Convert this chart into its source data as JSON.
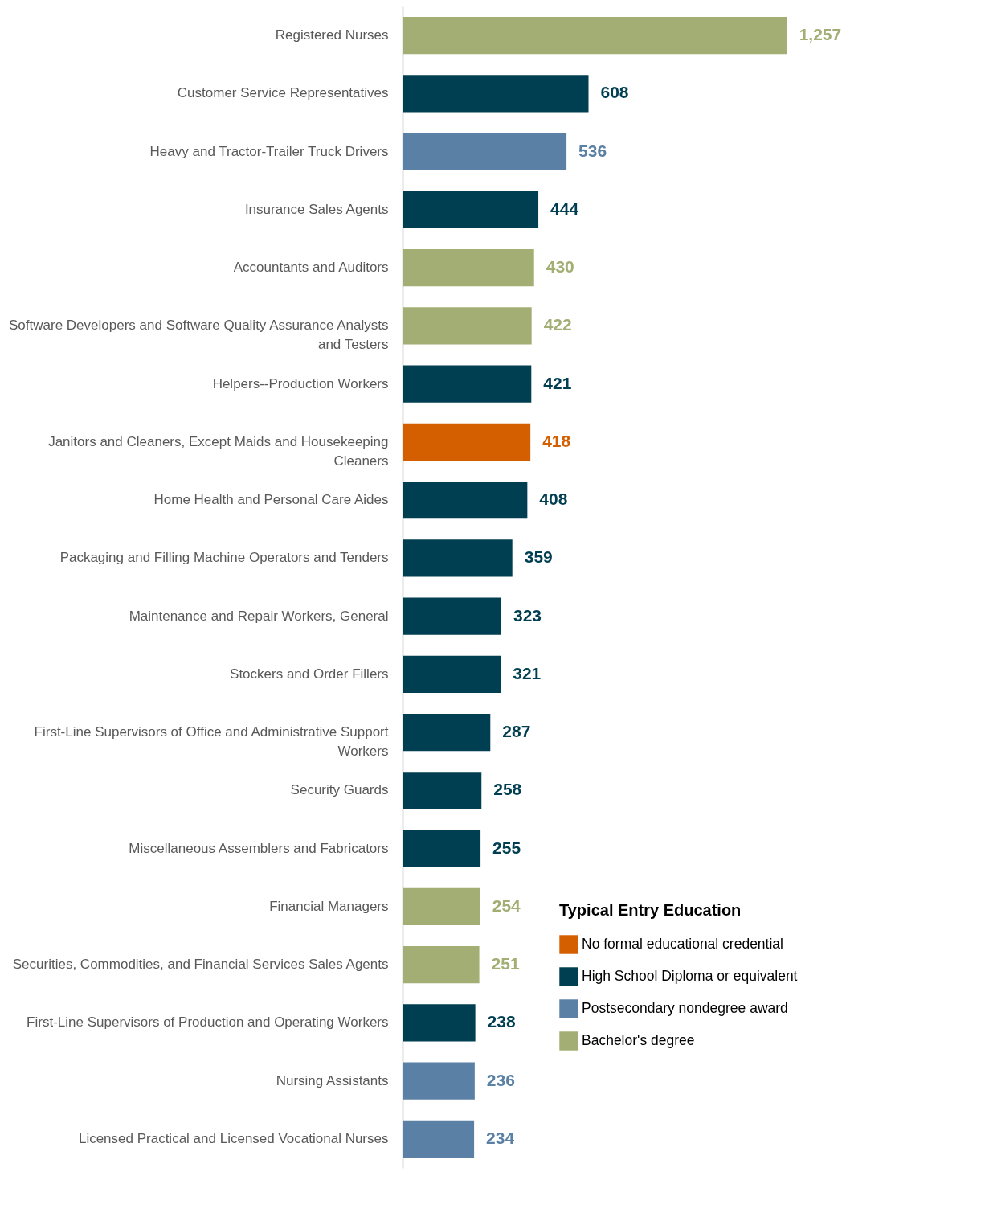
{
  "chart_data": {
    "type": "bar",
    "orientation": "horizontal",
    "legend": "bottom right",
    "legend_title": "Typical Entry Education",
    "categories": [
      "Registered Nurses",
      "Customer Service Representatives",
      "Heavy and Tractor-Trailer Truck Drivers",
      "Insurance Sales Agents",
      "Accountants and Auditors",
      "Software Developers and Software Quality Assurance Analysts and Testers",
      "Helpers--Production Workers",
      "Janitors and Cleaners, Except Maids and Housekeeping Cleaners",
      "Home Health and Personal Care Aides",
      "Packaging and Filling Machine Operators and Tenders",
      "Maintenance and Repair Workers, General",
      "Stockers and Order Fillers",
      "First-Line Supervisors of Office and Administrative Support Workers",
      "Security Guards",
      "Miscellaneous Assemblers and Fabricators",
      "Financial Managers",
      "Securities, Commodities, and Financial Services Sales Agents",
      "First-Line Supervisors of Production and Operating Workers",
      "Nursing Assistants",
      "Licensed Practical and Licensed Vocational Nurses"
    ],
    "series": [
      {
        "name": "No formal educational credential",
        "color": "#d45f00",
        "values": [
          null,
          null,
          null,
          null,
          null,
          null,
          null,
          418,
          null,
          null,
          null,
          null,
          null,
          null,
          null,
          null,
          null,
          null,
          null,
          null
        ],
        "value_labels": [
          null,
          null,
          null,
          null,
          null,
          null,
          null,
          "418",
          null,
          null,
          null,
          null,
          null,
          null,
          null,
          null,
          null,
          null,
          null,
          null
        ]
      },
      {
        "name": "High School Diploma or equivalent",
        "color": "#003e51",
        "values": [
          null,
          608,
          null,
          444,
          null,
          null,
          421,
          null,
          408,
          359,
          323,
          321,
          287,
          258,
          255,
          null,
          null,
          238,
          null,
          null
        ],
        "value_labels": [
          null,
          "608",
          null,
          "444",
          null,
          null,
          "421",
          null,
          "408",
          "359",
          "323",
          "321",
          "287",
          "258",
          "255",
          null,
          null,
          "238",
          null,
          null
        ]
      },
      {
        "name": "Postsecondary nondegree award",
        "color": "#5b80a5",
        "values": [
          null,
          null,
          536,
          null,
          null,
          null,
          null,
          null,
          null,
          null,
          null,
          null,
          null,
          null,
          null,
          null,
          null,
          null,
          236,
          234
        ],
        "value_labels": [
          null,
          null,
          "536",
          null,
          null,
          null,
          null,
          null,
          null,
          null,
          null,
          null,
          null,
          null,
          null,
          null,
          null,
          null,
          "236",
          "234"
        ]
      },
      {
        "name": "Bachelor's degree",
        "color": "#a3ae74",
        "values": [
          1257,
          null,
          null,
          null,
          430,
          422,
          null,
          null,
          null,
          null,
          null,
          null,
          null,
          null,
          null,
          254,
          251,
          null,
          null,
          null
        ],
        "value_labels": [
          "1,257",
          null,
          null,
          null,
          "430",
          "422",
          null,
          null,
          null,
          null,
          null,
          null,
          null,
          null,
          null,
          "254",
          "251",
          null,
          null,
          null
        ]
      }
    ]
  }
}
